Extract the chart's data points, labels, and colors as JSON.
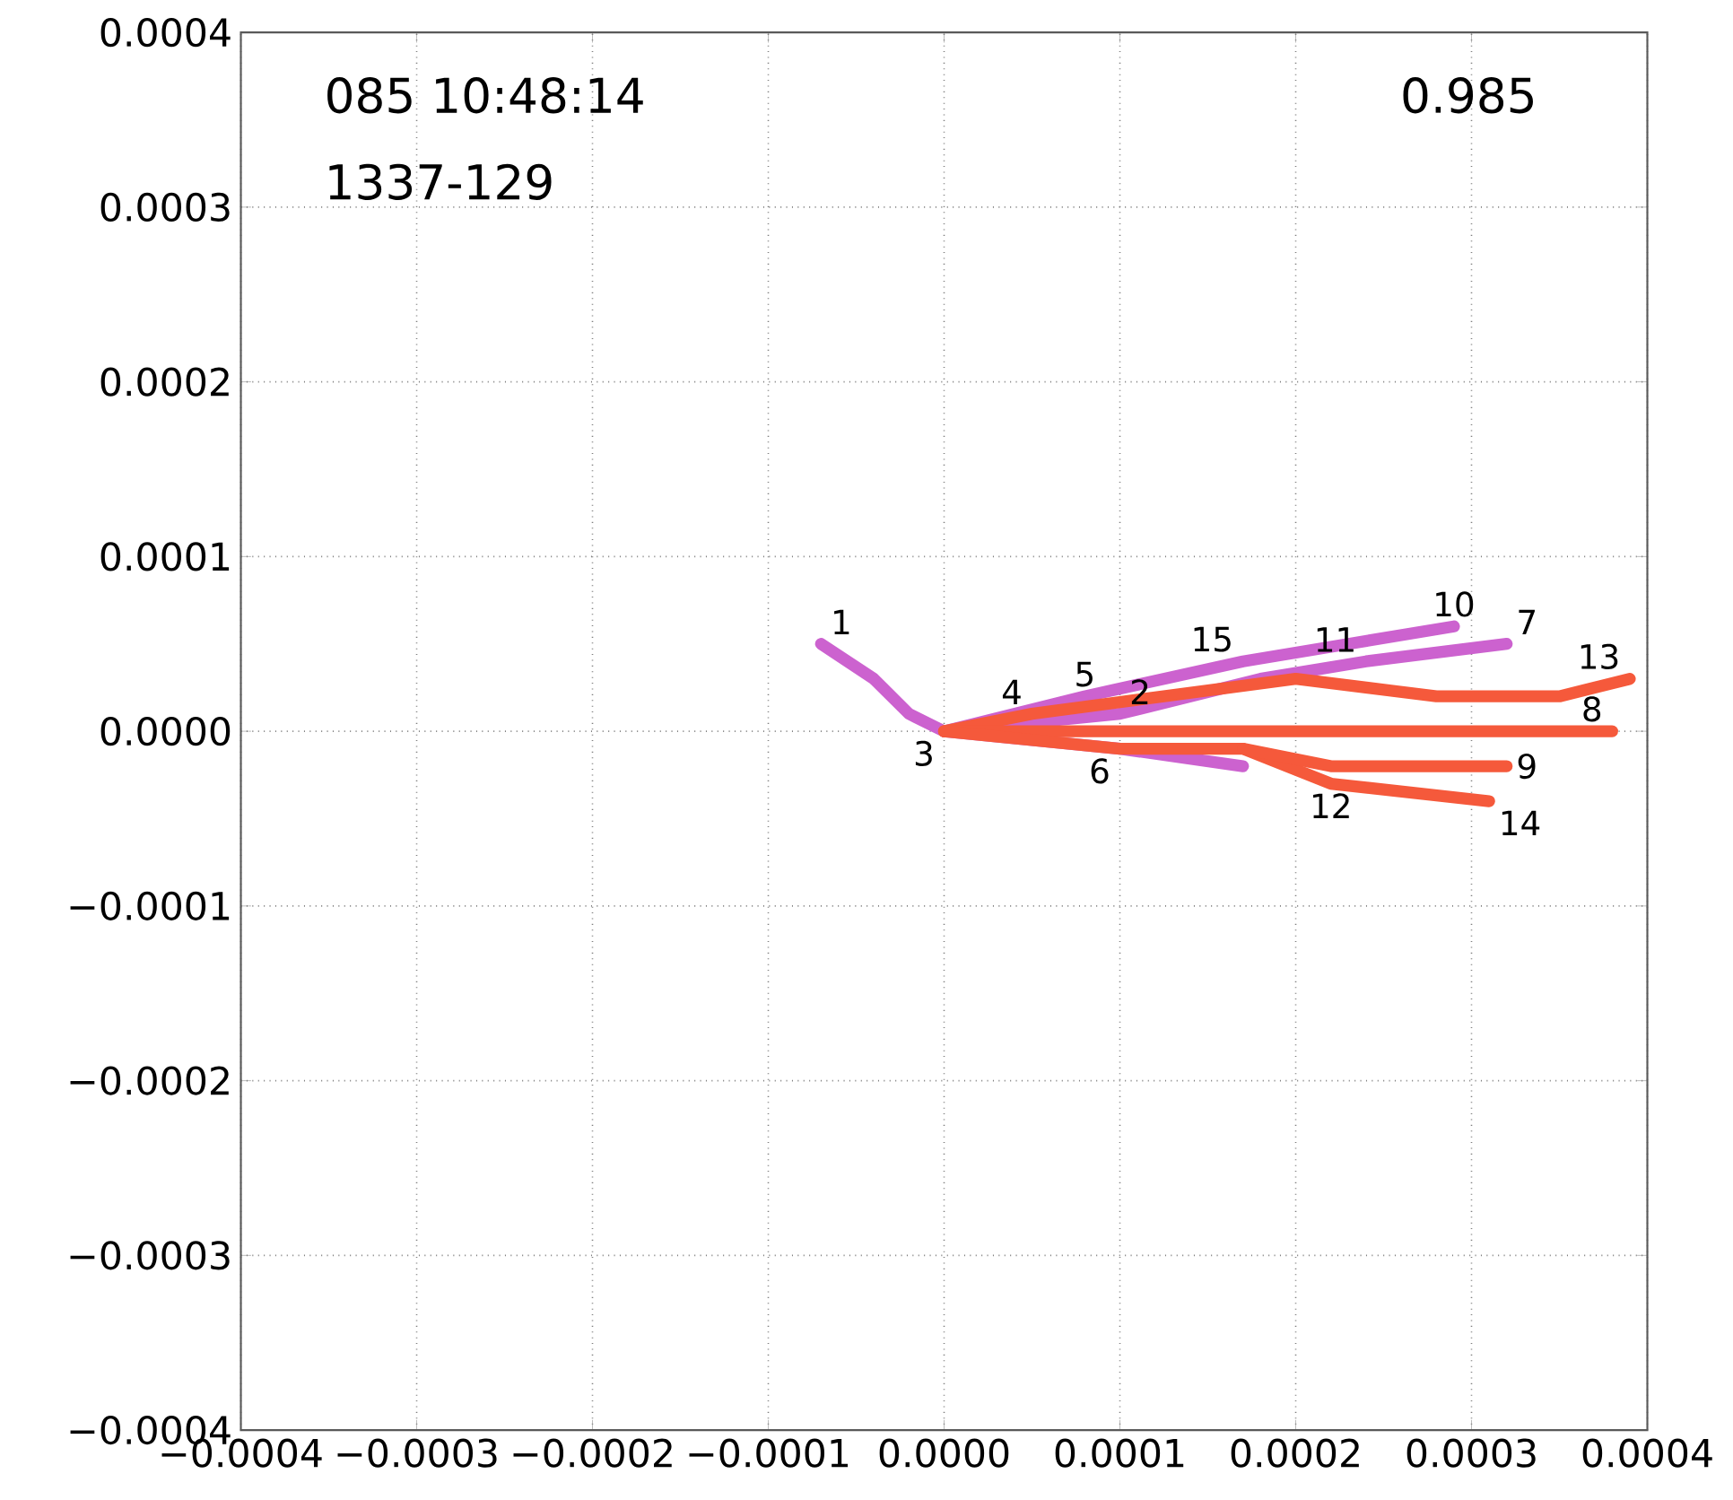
{
  "chart_data": {
    "type": "line",
    "xlim": [
      -0.0004,
      0.0004
    ],
    "ylim": [
      -0.0004,
      0.0004
    ],
    "xticks": [
      {
        "value": -0.0004,
        "label": "−0.0004"
      },
      {
        "value": -0.0003,
        "label": "−0.0003"
      },
      {
        "value": -0.0002,
        "label": "−0.0002"
      },
      {
        "value": -0.0001,
        "label": "−0.0001"
      },
      {
        "value": 0,
        "label": "0.0000"
      },
      {
        "value": 0.0001,
        "label": "0.0001"
      },
      {
        "value": 0.0002,
        "label": "0.0002"
      },
      {
        "value": 0.0003,
        "label": "0.0003"
      },
      {
        "value": 0.0004,
        "label": "0.0004"
      }
    ],
    "yticks": [
      {
        "value": -0.0004,
        "label": "−0.0004"
      },
      {
        "value": -0.0003,
        "label": "−0.0003"
      },
      {
        "value": -0.0002,
        "label": "−0.0002"
      },
      {
        "value": -0.0001,
        "label": "−0.0001"
      },
      {
        "value": 0,
        "label": "0.0000"
      },
      {
        "value": 0.0001,
        "label": "0.0001"
      },
      {
        "value": 0.0002,
        "label": "0.0002"
      },
      {
        "value": 0.0003,
        "label": "0.0003"
      },
      {
        "value": 0.0004,
        "label": "0.0004"
      }
    ],
    "grid": true,
    "series": [
      {
        "color": "#cc62cf",
        "x": [
          -7e-05,
          -4e-05,
          -2e-05,
          0,
          0.0001,
          0.00017
        ],
        "values": [
          5e-05,
          3e-05,
          1e-05,
          0,
          -1e-05,
          -2e-05
        ]
      },
      {
        "color": "#cc62cf",
        "x": [
          0,
          8e-05,
          0.00017,
          0.00023,
          0.00029
        ],
        "values": [
          0,
          2e-05,
          4e-05,
          5e-05,
          6e-05
        ]
      },
      {
        "color": "#cc62cf",
        "x": [
          0,
          0.0001,
          0.00018,
          0.00024,
          0.00032
        ],
        "values": [
          0,
          1e-05,
          3e-05,
          4e-05,
          5e-05
        ]
      },
      {
        "color": "#f5593b",
        "x": [
          0,
          5e-05,
          0.0002,
          0.00028,
          0.00035,
          0.00039
        ],
        "values": [
          0,
          1e-05,
          3e-05,
          2e-05,
          2e-05,
          3e-05
        ]
      },
      {
        "color": "#f5593b",
        "x": [
          0,
          0.0001,
          0.0002,
          0.00038
        ],
        "values": [
          0,
          0,
          0,
          0
        ]
      },
      {
        "color": "#f5593b",
        "x": [
          0,
          0.0001,
          0.00017,
          0.00022,
          0.00031
        ],
        "values": [
          0,
          -1e-05,
          -1e-05,
          -3e-05,
          -4e-05
        ]
      },
      {
        "color": "#f5593b",
        "x": [
          0.00017,
          0.00022,
          0.00032
        ],
        "values": [
          -1e-05,
          -2e-05,
          -2e-05
        ]
      }
    ],
    "annotations": [
      "085  10:48:14",
      "1337-129",
      "0.985",
      {
        "text": "1",
        "x": -7e-05,
        "y": 5e-05
      },
      {
        "text": "3",
        "x": 0,
        "y": 0
      },
      {
        "text": "5",
        "x": 8e-05,
        "y": 2e-05
      },
      {
        "text": "4",
        "x": 5e-05,
        "y": 1e-05
      },
      {
        "text": "2",
        "x": 0.0001,
        "y": 1e-05
      },
      {
        "text": "6",
        "x": 0.0001,
        "y": -1e-05
      },
      {
        "text": "15",
        "x": 0.00017,
        "y": 4e-05
      },
      {
        "text": "10",
        "x": 0.00029,
        "y": 6e-05
      },
      {
        "text": "7",
        "x": 0.00032,
        "y": 5e-05
      },
      {
        "text": "11",
        "x": 0.00024,
        "y": 4e-05
      },
      {
        "text": "13",
        "x": 0.00039,
        "y": 3e-05
      },
      {
        "text": "8",
        "x": 0.00038,
        "y": 0
      },
      {
        "text": "12",
        "x": 0.00022,
        "y": -3e-05
      },
      {
        "text": "9",
        "x": 0.00032,
        "y": -2e-05
      },
      {
        "text": "14",
        "x": 0.00031,
        "y": -4e-05
      }
    ]
  }
}
